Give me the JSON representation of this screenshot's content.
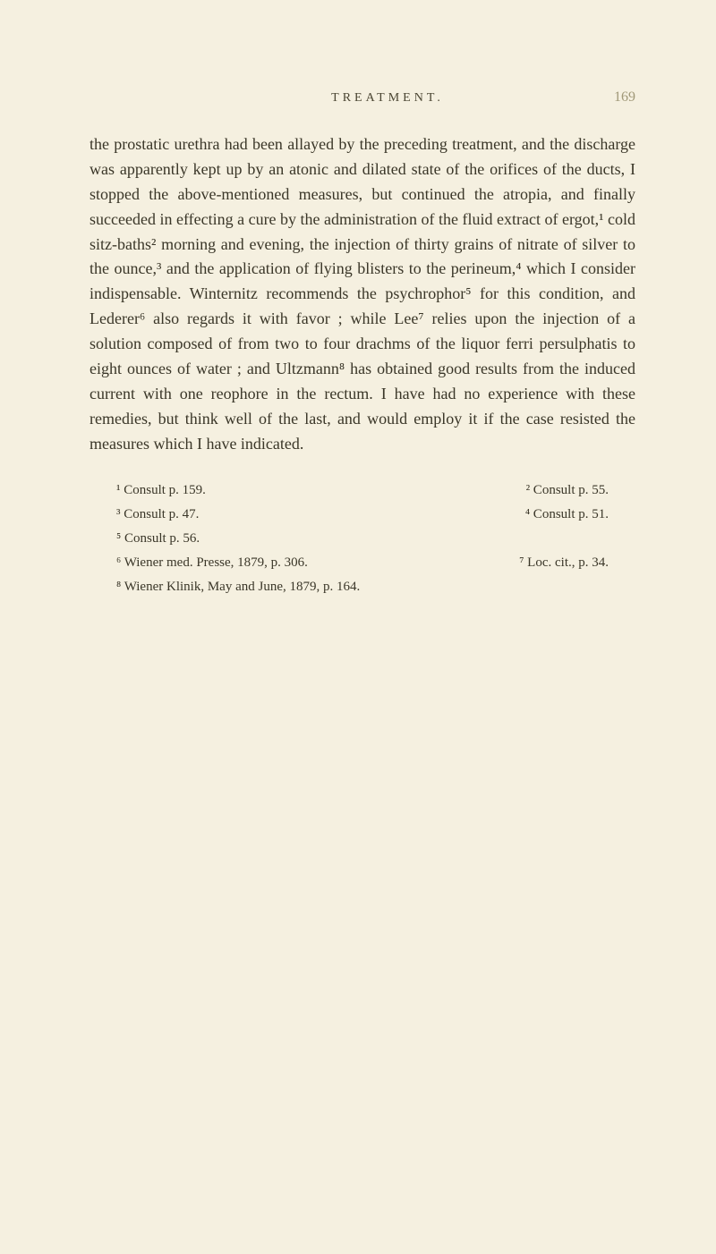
{
  "header": {
    "title": "TREATMENT.",
    "page_number": "169"
  },
  "body": {
    "paragraph": "the prostatic urethra had been allayed by the preceding treatment, and the discharge was apparently kept up by an atonic and dilated state of the orifices of the ducts, I stopped the above-mentioned measures, but continued the atropia, and finally succeeded in effecting a cure by the administration of the fluid extract of ergot,¹ cold sitz-baths² morning and evening, the injection of thirty grains of nitrate of silver to the ounce,³ and the application of flying blisters to the perineum,⁴ which I consider indispensable. Winternitz recommends the psychrophor⁵ for this condition, and Lederer⁶ also regards it with favor ; while Lee⁷ relies upon the injection of a solution composed of from two to four drachms of the liquor ferri persulphatis to eight ounces of water ; and Ultzmann⁸ has obtained good results from the induced current with one reophore in the rectum. I have had no experience with these remedies, but think well of the last, and would employ it if the case resisted the measures which I have indicated."
  },
  "footnotes": {
    "fn1": "¹ Consult p. 159.",
    "fn2": "² Consult p. 55.",
    "fn3": "³ Consult p. 47.",
    "fn4": "⁴ Consult p. 51.",
    "fn5": "⁵ Consult p. 56.",
    "fn6": "⁶ Wiener med. Presse, 1879, p. 306.",
    "fn7": "⁷ Loc. cit., p. 34.",
    "fn8": "⁸ Wiener Klinik, May and June, 1879, p. 164."
  },
  "colors": {
    "background": "#f5f0e0",
    "text": "#3a3628",
    "header_text": "#4a4532",
    "page_number": "#a09878"
  },
  "typography": {
    "body_fontsize": 18,
    "footnote_fontsize": 15,
    "header_fontsize": 14,
    "body_lineheight": 1.55,
    "font_family": "Georgia, Times New Roman, serif"
  }
}
